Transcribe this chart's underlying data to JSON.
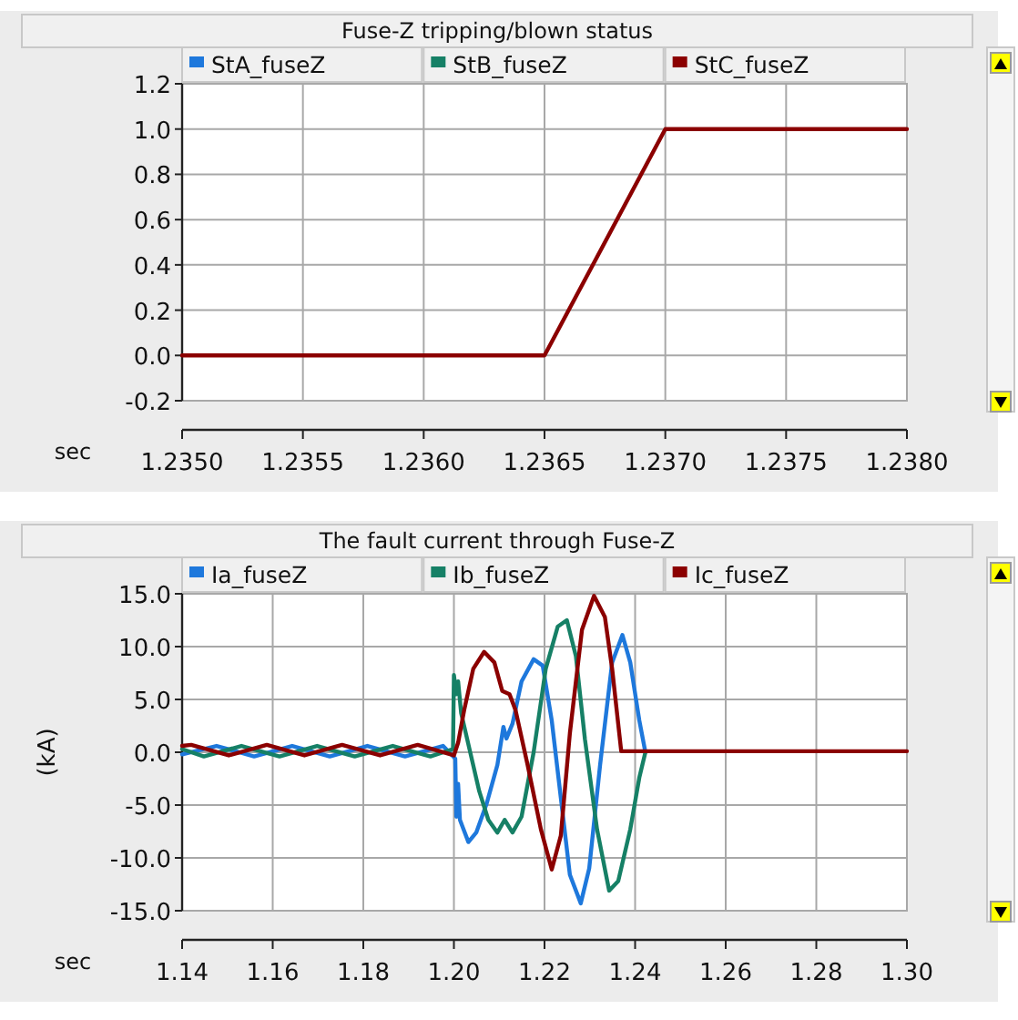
{
  "chart_data": [
    {
      "type": "line",
      "title": "Fuse-Z tripping/blown status",
      "xlabel": "sec",
      "legend": "top",
      "grid": true,
      "line_style": "solid",
      "xlim": [
        1.235,
        1.238
      ],
      "ylim": [
        -0.2,
        1.2
      ],
      "xticks": [
        {
          "value": 1.235,
          "label": "1.2350"
        },
        1.2355,
        {
          "value": 1.236,
          "label": "1.2360"
        },
        1.2365,
        {
          "value": 1.237,
          "label": "1.2370"
        },
        1.2375,
        {
          "value": 1.238,
          "label": "1.2380"
        }
      ],
      "yticks": [
        -0.2,
        {
          "value": 0,
          "label": "0.0"
        },
        0.2,
        0.4,
        0.6,
        0.8,
        {
          "value": 1,
          "label": "1.0"
        },
        1.2
      ],
      "series": [
        {
          "name": "StA_fuseZ",
          "color": "#1e78dc"
        },
        {
          "name": "StB_fuseZ",
          "color": "#168066"
        },
        {
          "name": "StC_fuseZ",
          "color": "#8b0000",
          "x": [
            1.235,
            1.2365,
            1.237,
            1.238
          ],
          "values": [
            0,
            0,
            1,
            1
          ]
        }
      ]
    },
    {
      "type": "line",
      "title": "The fault current through Fuse-Z",
      "xlabel": "sec",
      "ylabel": "(kA)",
      "legend": "top",
      "grid": true,
      "line_style": "solid",
      "xlim": [
        1.14,
        1.3
      ],
      "ylim": [
        -15,
        15
      ],
      "xticks": [
        1.14,
        1.16,
        1.18,
        {
          "value": 1.2,
          "label": "1.20"
        },
        1.22,
        1.24,
        1.26,
        1.28,
        {
          "value": 1.3,
          "label": "1.30"
        }
      ],
      "yticks": [
        {
          "value": -15,
          "label": "-15.0"
        },
        {
          "value": -10,
          "label": "-10.0"
        },
        {
          "value": -5,
          "label": "-5.0"
        },
        {
          "value": 0,
          "label": "0.0"
        },
        {
          "value": 5,
          "label": "5.0"
        },
        {
          "value": 10,
          "label": "10.0"
        },
        {
          "value": 15,
          "label": "15.0"
        }
      ],
      "series": [
        {
          "name": "Ia_fuseZ",
          "color": "#1e78dc",
          "x": [
            1.14,
            1.1476,
            1.1559,
            1.1643,
            1.1726,
            1.1809,
            1.1892,
            1.1976,
            1.2003,
            1.20053,
            1.20093,
            1.20133,
            1.2032,
            1.20493,
            1.2072,
            1.2096,
            1.21093,
            1.2116,
            1.21293,
            1.21493,
            1.2176,
            1.2196,
            1.2216,
            1.2236,
            1.2256,
            1.228,
            1.22987,
            1.23227,
            1.23493,
            1.2372,
            1.23893,
            1.24093,
            1.24227
          ],
          "values": [
            -0.2,
            0.6,
            -0.4,
            0.6,
            -0.4,
            0.6,
            -0.4,
            0.6,
            -0.6,
            -6.1,
            -3.0,
            -6.4,
            -8.5,
            -7.6,
            -4.9,
            -1.2,
            2.4,
            1.3,
            2.7,
            6.7,
            8.8,
            8.2,
            3.0,
            -4.3,
            -11.6,
            -14.3,
            -11.0,
            -1.2,
            8.5,
            11.1,
            8.5,
            3.0,
            0
          ]
        },
        {
          "name": "Ib_fuseZ",
          "color": "#168066",
          "x": [
            1.14,
            1.1448,
            1.1531,
            1.1615,
            1.1698,
            1.1781,
            1.1865,
            1.1948,
            1.1998,
            1.2,
            1.20053,
            1.20093,
            1.2016,
            1.2036,
            1.2056,
            1.2076,
            1.2096,
            1.2112,
            1.21293,
            1.21493,
            1.2176,
            1.22027,
            1.22293,
            1.22493,
            1.22693,
            1.22893,
            1.2316,
            1.23427,
            1.23627,
            1.23893,
            1.24093,
            1.24227
          ],
          "values": [
            0.3,
            -0.4,
            0.6,
            -0.4,
            0.6,
            -0.4,
            0.6,
            -0.4,
            0.3,
            7.3,
            5.5,
            6.7,
            3.7,
            0,
            -3.7,
            -6.4,
            -7.6,
            -6.4,
            -7.6,
            -6.1,
            0,
            7.9,
            11.9,
            12.5,
            9.1,
            1.2,
            -7.3,
            -13.1,
            -12.2,
            -7.3,
            -2.4,
            0
          ]
        },
        {
          "name": "Ic_fuseZ",
          "color": "#8b0000",
          "x": [
            1.14,
            1.142,
            1.1503,
            1.1587,
            1.167,
            1.1753,
            1.1837,
            1.192,
            1.2,
            1.20093,
            1.20227,
            1.20427,
            1.20667,
            1.20893,
            1.21067,
            1.21227,
            1.2136,
            1.21627,
            1.2192,
            1.2216,
            1.2236,
            1.2256,
            1.22827,
            1.23093,
            1.23333,
            1.23493,
            1.23693,
            1.3
          ],
          "values": [
            0.6,
            0.7,
            -0.3,
            0.7,
            -0.3,
            0.7,
            -0.3,
            0.7,
            -0.3,
            0.9,
            4.0,
            7.9,
            9.5,
            8.5,
            5.8,
            5.5,
            4.0,
            -1.2,
            -7.3,
            -11.1,
            -7.9,
            1.8,
            11.6,
            14.8,
            12.8,
            7.9,
            0.1,
            0.1
          ]
        }
      ]
    }
  ]
}
